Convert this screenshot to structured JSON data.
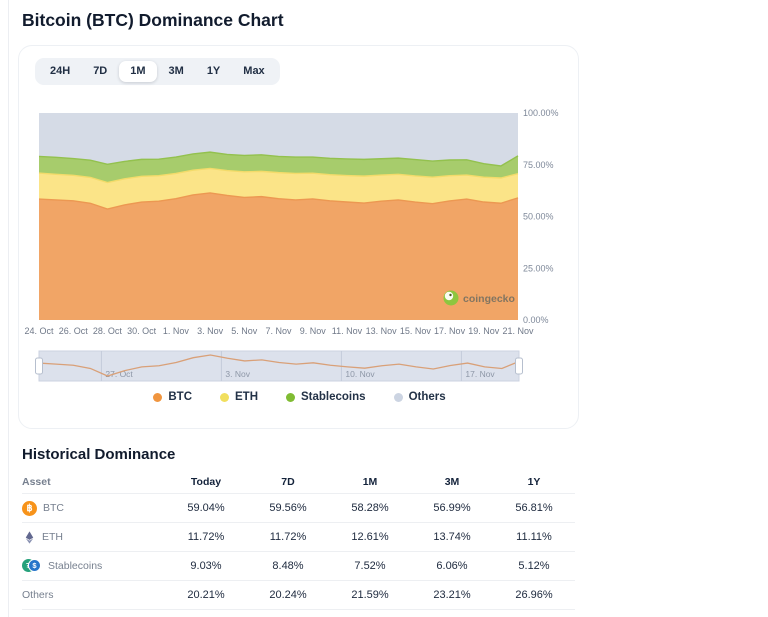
{
  "page": {
    "title": "Bitcoin (BTC) Dominance Chart"
  },
  "range_selector": {
    "options": [
      "24H",
      "7D",
      "1M",
      "3M",
      "1Y",
      "Max"
    ],
    "selected": "1M"
  },
  "chart_data": {
    "type": "area",
    "stacked": true,
    "unit": "%",
    "ylim": [
      0,
      100
    ],
    "grid": false,
    "legend_position": "bottom",
    "watermark": "coingecko",
    "x": [
      "24. Oct",
      "25. Oct",
      "26. Oct",
      "27. Oct",
      "28. Oct",
      "29. Oct",
      "30. Oct",
      "31. Oct",
      "1. Nov",
      "2. Nov",
      "3. Nov",
      "4. Nov",
      "5. Nov",
      "6. Nov",
      "7. Nov",
      "8. Nov",
      "9. Nov",
      "10. Nov",
      "11. Nov",
      "12. Nov",
      "13. Nov",
      "14. Nov",
      "15. Nov",
      "16. Nov",
      "17. Nov",
      "18. Nov",
      "19. Nov",
      "20. Nov",
      "21. Nov"
    ],
    "x_tick_labels": [
      "24. Oct",
      "26. Oct",
      "28. Oct",
      "30. Oct",
      "1. Nov",
      "3. Nov",
      "5. Nov",
      "7. Nov",
      "9. Nov",
      "11. Nov",
      "13. Nov",
      "15. Nov",
      "17. Nov",
      "19. Nov",
      "21. Nov"
    ],
    "y_tick_labels": [
      "100.00%",
      "75.00%",
      "50.00%",
      "25.00%",
      "0.00%"
    ],
    "y_tick_values": [
      100,
      75,
      50,
      25,
      0
    ],
    "series": [
      {
        "name": "BTC",
        "dot_color": "#F0953F",
        "area_color": "#F1A566",
        "line_color": "#EC9852",
        "values": [
          58.4,
          58.0,
          57.6,
          56.4,
          53.6,
          55.6,
          57.0,
          57.4,
          58.6,
          60.4,
          61.4,
          60.2,
          59.2,
          59.6,
          58.6,
          58.0,
          58.5,
          57.6,
          57.0,
          56.5,
          57.4,
          58.0,
          57.0,
          56.2,
          57.5,
          58.4,
          57.0,
          56.4,
          59.0
        ]
      },
      {
        "name": "ETH",
        "dot_color": "#F1DF5E",
        "area_color": "#FBE488",
        "line_color": "#F3DB6A",
        "values": [
          12.6,
          12.4,
          12.3,
          12.5,
          12.8,
          12.6,
          12.4,
          12.3,
          12.2,
          12.0,
          11.8,
          12.0,
          12.4,
          12.2,
          12.6,
          12.8,
          12.4,
          12.6,
          12.8,
          13.0,
          12.6,
          12.4,
          12.6,
          12.8,
          12.2,
          11.6,
          12.0,
          12.2,
          11.7
        ]
      },
      {
        "name": "Stablecoins",
        "dot_color": "#80BC33",
        "area_color": "#A7CC6C",
        "line_color": "#93C14E",
        "values": [
          8.0,
          8.2,
          8.1,
          8.3,
          8.8,
          8.4,
          8.2,
          8.0,
          7.9,
          7.8,
          7.9,
          7.8,
          7.9,
          8.0,
          7.8,
          7.9,
          7.8,
          7.9,
          8.0,
          8.1,
          7.9,
          7.8,
          7.9,
          7.8,
          7.6,
          7.4,
          6.5,
          5.8,
          8.6
        ]
      },
      {
        "name": "Others",
        "dot_color": "#CCD4E2",
        "area_color": "#D5DBE6",
        "line_color": "#CCD4E2",
        "values": [
          21.0,
          21.4,
          22.0,
          22.8,
          24.8,
          23.4,
          22.4,
          22.3,
          21.3,
          19.8,
          18.9,
          20.0,
          20.5,
          20.2,
          21.0,
          21.3,
          21.3,
          21.9,
          22.2,
          22.4,
          22.1,
          21.8,
          22.5,
          23.2,
          22.7,
          22.6,
          24.5,
          25.6,
          20.7
        ]
      }
    ],
    "navigator": {
      "labels": [
        "27. Oct",
        "3. Nov",
        "10. Nov",
        "17. Nov"
      ],
      "positions": [
        0.13,
        0.38,
        0.63,
        0.88
      ]
    }
  },
  "legend": {
    "items": [
      "BTC",
      "ETH",
      "Stablecoins",
      "Others"
    ]
  },
  "table": {
    "title": "Historical Dominance",
    "columns": [
      "Asset",
      "Today",
      "7D",
      "1M",
      "3M",
      "1Y"
    ],
    "rows": [
      {
        "asset": "BTC",
        "icon": "btc-icon",
        "values": [
          "59.04%",
          "59.56%",
          "58.28%",
          "56.99%",
          "56.81%"
        ]
      },
      {
        "asset": "ETH",
        "icon": "eth-icon",
        "values": [
          "11.72%",
          "11.72%",
          "12.61%",
          "13.74%",
          "11.11%"
        ]
      },
      {
        "asset": "Stablecoins",
        "icon": "stablecoins-icon",
        "values": [
          "9.03%",
          "8.48%",
          "7.52%",
          "6.06%",
          "5.12%"
        ]
      },
      {
        "asset": "Others",
        "icon": null,
        "values": [
          "20.21%",
          "20.24%",
          "21.59%",
          "23.21%",
          "26.96%"
        ]
      }
    ]
  },
  "icons": {
    "btc_symbol": "฿",
    "usdt_symbol": "₮",
    "usdc_symbol": "$"
  }
}
